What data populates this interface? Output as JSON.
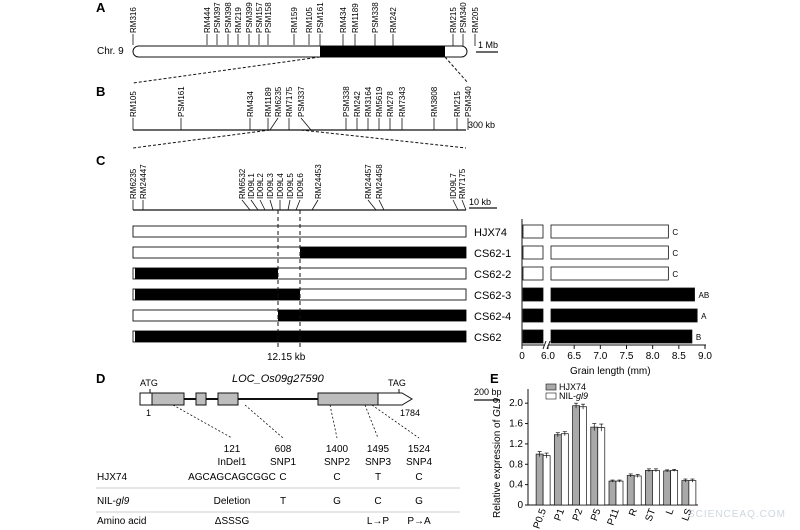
{
  "panelA": {
    "letter": "A",
    "chr_label": "Chr. 9",
    "scale": "1 Mb",
    "markers": [
      "RM316",
      "RM444",
      "PSM397",
      "PSM398",
      "RM219",
      "PSM399",
      "PSM157",
      "PSM158",
      "RM159",
      "RM105",
      "PSM161",
      "RM434",
      "RM1189",
      "PSM338",
      "RM242",
      "RM215",
      "PSM340",
      "RM205"
    ]
  },
  "panelB": {
    "letter": "B",
    "scale": "300 kb",
    "markers": [
      "RM105",
      "PSM161",
      "RM434",
      "RM1189",
      "RM6235",
      "RM7175",
      "PSM337",
      "PSM338",
      "RM242",
      "RM3164",
      "RM5619",
      "RM278",
      "RM7343",
      "RM3808",
      "RM215",
      "PSM340"
    ]
  },
  "panelC": {
    "letter": "C",
    "scale": "10 kb",
    "markers": [
      "RM6235",
      "RM24447",
      "RM6532",
      "ID09L1",
      "ID09L2",
      "ID09L3",
      "ID09L4",
      "ID09L5",
      "ID09L6",
      "RM24453",
      "RM24457",
      "RM24458",
      "ID09L7",
      "RM7175"
    ],
    "interval": "12.15 kb",
    "lines": [
      {
        "name": "HJX74",
        "letter": "C",
        "grain": 8.3
      },
      {
        "name": "CS62-1",
        "letter": "C",
        "grain": 8.3
      },
      {
        "name": "CS62-2",
        "letter": "C",
        "grain": 8.3
      },
      {
        "name": "CS62-3",
        "letter": "AB",
        "grain": 8.8
      },
      {
        "name": "CS62-4",
        "letter": "A",
        "grain": 8.85
      },
      {
        "name": "CS62",
        "letter": "B",
        "grain": 8.75
      }
    ],
    "axis_title": "Grain length (mm)",
    "ticks": [
      "0",
      "6.0",
      "6.5",
      "7.0",
      "7.5",
      "8.0",
      "8.5",
      "9.0"
    ]
  },
  "panelD": {
    "letter": "D",
    "gene": "LOC_Os09g27590",
    "atg": "ATG",
    "tag": "TAG",
    "pos_start": "1",
    "pos_end": "1784",
    "scale": "200 bp",
    "variants": [
      {
        "pos": "121",
        "type": "InDel1",
        "hjx": "AGCAGCAGCGGC",
        "nil": "Deletion",
        "aa": "ΔSSSG"
      },
      {
        "pos": "608",
        "type": "SNP1",
        "hjx": "C",
        "nil": "T",
        "aa": ""
      },
      {
        "pos": "1400",
        "type": "SNP2",
        "hjx": "C",
        "nil": "G",
        "aa": ""
      },
      {
        "pos": "1495",
        "type": "SNP3",
        "hjx": "T",
        "nil": "C",
        "aa": "L→P"
      },
      {
        "pos": "1524",
        "type": "SNP4",
        "hjx": "C",
        "nil": "G",
        "aa": "P→A"
      }
    ],
    "row_labels": {
      "hjx": "HJX74",
      "nil_prefix": "NIL-",
      "nil_gene": "gl9",
      "aa": "Amino acid"
    }
  },
  "panelE": {
    "letter": "E",
    "ylabel_prefix": "Relative expression of ",
    "ylabel_gene": "GL9",
    "legend": {
      "hjx": "HJX74",
      "nil_prefix": "NIL-",
      "nil_gene": "gl9"
    },
    "yticks": [
      "0",
      "0.4",
      "0.8",
      "1.2",
      "1.6",
      "2.0"
    ]
  },
  "chart_data": {
    "type": "bar",
    "categories": [
      "P0.5",
      "P1",
      "P2",
      "P5",
      "P11",
      "R",
      "ST",
      "L",
      "LS"
    ],
    "series": [
      {
        "name": "HJX74",
        "values": [
          1.0,
          1.38,
          1.95,
          1.53,
          0.47,
          0.58,
          0.68,
          0.67,
          0.48
        ],
        "color": "#a9a9a9"
      },
      {
        "name": "NIL-gl9",
        "values": [
          0.97,
          1.4,
          1.93,
          1.52,
          0.47,
          0.57,
          0.68,
          0.68,
          0.48
        ],
        "color": "#ffffff"
      }
    ],
    "errors": [
      0.05,
      0.04,
      0.05,
      0.07,
      0.02,
      0.03,
      0.03,
      0.02,
      0.03
    ],
    "ylim": [
      0,
      2.2
    ],
    "ylabel": "Relative expression of GL9",
    "legend": "top-right"
  },
  "watermark": "SCIENCEAQ.COM"
}
